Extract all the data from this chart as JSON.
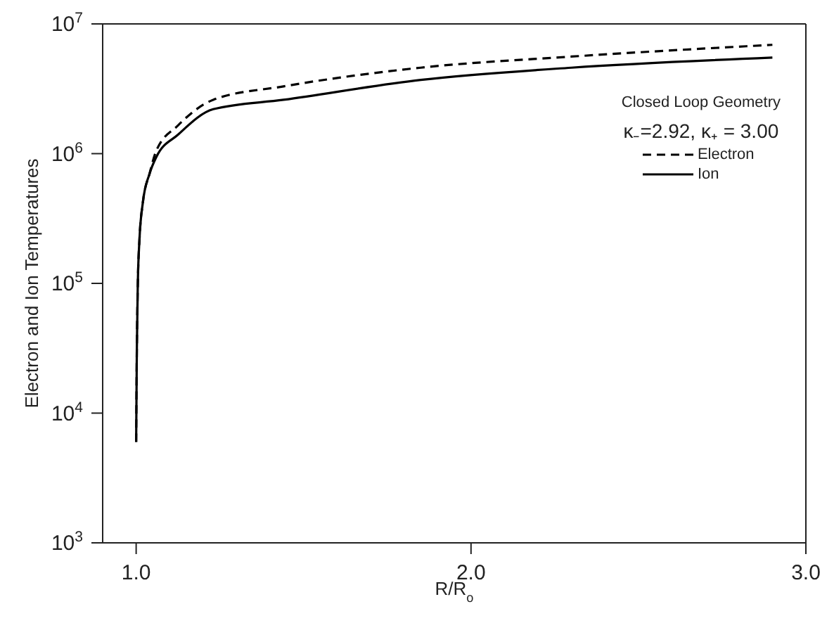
{
  "chart_data": {
    "type": "line",
    "xlabel": "R/R$_{o}$",
    "ylabel": "Electron and Ion Temperatures",
    "annotations": [
      "Closed Loop Geometry",
      "κ₋=2.92, κ₊ = 3.00"
    ],
    "xlim": [
      0.9,
      3.0
    ],
    "xticks": [
      {
        "value": 1,
        "label": "1.0"
      },
      {
        "value": 2,
        "label": "2.0"
      },
      {
        "value": 3,
        "label": "3.0"
      }
    ],
    "ylim": [
      1000,
      10000000
    ],
    "yticks": [
      {
        "value": 1000,
        "label": "10$^{3}$"
      },
      {
        "value": 10000,
        "label": "10$^{4}$"
      },
      {
        "value": 100000,
        "label": "10$^{5}$"
      },
      {
        "value": 1000000,
        "label": "10$^{6}$"
      },
      {
        "value": 10000000,
        "label": "10$^{7}$"
      }
    ],
    "log": "y",
    "grid": false,
    "legend": "top right",
    "marker": "none",
    "series": [
      {
        "name": "Electron",
        "color": "#000000",
        "line_style": "dashed",
        "x": [
          1.0,
          1.002,
          1.005,
          1.01,
          1.02,
          1.04,
          1.06,
          1.125,
          1.23,
          1.44,
          1.85,
          2.3,
          2.9
        ],
        "values": [
          6000,
          30000,
          100000,
          220000,
          420000,
          700000,
          1050000,
          1650000,
          2600000,
          3300000,
          4600000,
          5600000,
          6900000
        ]
      },
      {
        "name": "Ion",
        "color": "#000000",
        "line_style": "solid",
        "x": [
          1.0,
          1.002,
          1.005,
          1.01,
          1.02,
          1.04,
          1.06,
          1.125,
          1.23,
          1.44,
          1.85,
          2.3,
          2.9
        ],
        "values": [
          6000,
          30000,
          100000,
          220000,
          420000,
          700000,
          940000,
          1400000,
          2200000,
          2600000,
          3700000,
          4600000,
          5500000
        ]
      }
    ]
  }
}
